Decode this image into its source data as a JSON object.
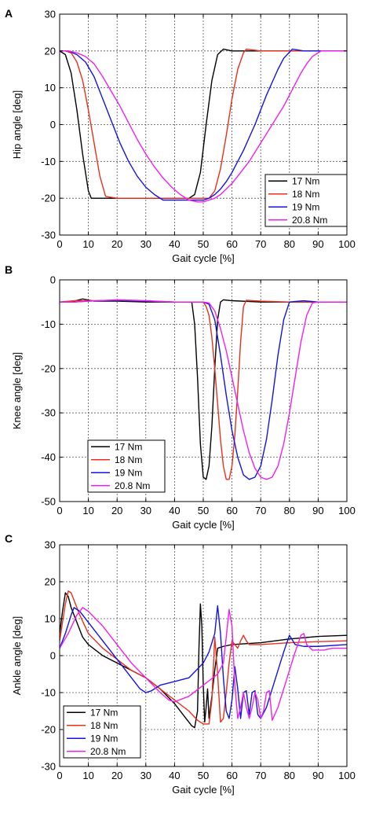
{
  "colors": {
    "17 Nm": "#000000",
    "18 Nm": "#e8301c",
    "19 Nm": "#1414e0",
    "20.8 Nm": "#f020f0"
  },
  "chart_data": [
    {
      "type": "line",
      "panel_label": "A",
      "xlabel": "Gait cycle [%]",
      "ylabel": "Hip angle [deg]",
      "xlim": [
        0,
        100
      ],
      "ylim": [
        -30,
        30
      ],
      "xticks": [
        0,
        10,
        20,
        30,
        40,
        50,
        60,
        70,
        80,
        90,
        100
      ],
      "yticks": [
        -30,
        -20,
        -10,
        0,
        10,
        20,
        30
      ],
      "grid": true,
      "legend_position": "bottom-right",
      "series": [
        {
          "name": "17 Nm",
          "x": [
            0,
            2,
            4,
            6,
            8,
            10,
            11,
            14,
            20,
            30,
            40,
            45,
            47,
            49,
            51,
            53,
            55,
            57,
            60,
            70,
            80,
            90,
            100
          ],
          "y": [
            20,
            19,
            14,
            4,
            -8,
            -18,
            -20,
            -20,
            -20,
            -20,
            -20,
            -20,
            -19,
            -13,
            0,
            12,
            19,
            20.5,
            20,
            20,
            20,
            20,
            20
          ]
        },
        {
          "name": "18 Nm",
          "x": [
            0,
            2,
            4,
            6,
            8,
            10,
            12,
            14,
            16,
            20,
            30,
            40,
            50,
            52,
            54,
            56,
            58,
            60,
            62,
            64,
            65,
            70,
            80,
            90,
            100
          ],
          "y": [
            20,
            20,
            19.5,
            17,
            12,
            4,
            -5,
            -14,
            -19.5,
            -20,
            -20,
            -20,
            -20,
            -20,
            -18,
            -12,
            -3,
            7,
            15,
            19.5,
            20.5,
            20,
            20,
            20,
            20
          ]
        },
        {
          "name": "19 Nm",
          "x": [
            0,
            3,
            6,
            9,
            12,
            15,
            18,
            21,
            24,
            27,
            30,
            33,
            36,
            40,
            45,
            50,
            52,
            54,
            56,
            58,
            60,
            62,
            64,
            66,
            68,
            70,
            72,
            74,
            76,
            78,
            81,
            85,
            90,
            100
          ],
          "y": [
            20,
            20,
            19,
            17,
            13,
            7,
            1,
            -5,
            -10,
            -14,
            -17,
            -19,
            -20.5,
            -20.5,
            -20.5,
            -20.5,
            -20,
            -19,
            -17.5,
            -15.5,
            -13,
            -10,
            -7,
            -3.5,
            0,
            4,
            8,
            11.5,
            15,
            18,
            20.5,
            20,
            20,
            20
          ]
        },
        {
          "name": "20.8 Nm",
          "x": [
            0,
            3,
            6,
            9,
            12,
            15,
            18,
            21,
            24,
            27,
            30,
            33,
            36,
            39,
            42,
            45,
            48,
            50,
            52,
            54,
            56,
            58,
            60,
            62,
            64,
            66,
            68,
            70,
            72,
            74,
            76,
            78,
            80,
            82,
            84,
            86,
            88,
            91,
            95,
            100
          ],
          "y": [
            20,
            20,
            19.5,
            18.5,
            16.5,
            13,
            9,
            5,
            0.5,
            -4,
            -8,
            -11.5,
            -14.5,
            -17,
            -19,
            -20.5,
            -21,
            -21,
            -20.5,
            -20,
            -19,
            -17.5,
            -16,
            -14,
            -12,
            -10,
            -7.5,
            -5,
            -2.5,
            0,
            2.5,
            5,
            8,
            11,
            14,
            16.5,
            18.5,
            20,
            20,
            20
          ]
        }
      ]
    },
    {
      "type": "line",
      "panel_label": "B",
      "xlabel": "Gait cycle [%]",
      "ylabel": "Knee angle [deg]",
      "xlim": [
        0,
        100
      ],
      "ylim": [
        -50,
        0
      ],
      "xticks": [
        0,
        10,
        20,
        30,
        40,
        50,
        60,
        70,
        80,
        90,
        100
      ],
      "yticks": [
        -50,
        -40,
        -30,
        -20,
        -10,
        0
      ],
      "grid": true,
      "legend_position": "bottom-left",
      "series": [
        {
          "name": "17 Nm",
          "x": [
            0,
            5,
            8,
            12,
            20,
            30,
            40,
            46,
            47,
            48,
            49,
            50,
            51,
            52,
            53,
            54,
            55,
            56,
            57,
            60,
            70,
            80,
            90,
            100
          ],
          "y": [
            -5,
            -4.8,
            -4.3,
            -4.8,
            -4.8,
            -5,
            -5,
            -5,
            -10,
            -22,
            -37,
            -44.5,
            -45,
            -42,
            -33,
            -20,
            -9,
            -5,
            -4.5,
            -4.7,
            -5,
            -5,
            -5,
            -5
          ]
        },
        {
          "name": "18 Nm",
          "x": [
            0,
            5,
            10,
            20,
            30,
            40,
            50,
            51,
            52,
            53,
            54,
            55,
            56,
            57,
            58,
            59,
            60,
            61,
            62,
            63,
            64,
            65,
            70,
            80,
            90,
            100
          ],
          "y": [
            -5,
            -4.7,
            -4.7,
            -4.6,
            -4.8,
            -5,
            -5,
            -6,
            -8,
            -13,
            -20,
            -28,
            -36,
            -42,
            -45,
            -45,
            -42,
            -35,
            -25,
            -14,
            -6,
            -4.6,
            -4.8,
            -5,
            -5,
            -5
          ]
        },
        {
          "name": "19 Nm",
          "x": [
            0,
            5,
            10,
            20,
            30,
            40,
            50,
            52,
            54,
            56,
            58,
            60,
            62,
            64,
            66,
            68,
            70,
            72,
            74,
            76,
            78,
            80,
            85,
            90,
            100
          ],
          "y": [
            -5,
            -5,
            -4.8,
            -4.6,
            -4.8,
            -5,
            -5,
            -5.5,
            -9,
            -17,
            -26,
            -34,
            -40,
            -44,
            -45,
            -44.5,
            -42,
            -36,
            -27,
            -17,
            -9,
            -5,
            -4.7,
            -5,
            -5
          ]
        },
        {
          "name": "20.8 Nm",
          "x": [
            0,
            5,
            10,
            20,
            30,
            40,
            50,
            52,
            54,
            56,
            58,
            60,
            62,
            64,
            66,
            68,
            70,
            72,
            74,
            76,
            78,
            80,
            82,
            84,
            86,
            88,
            90,
            100
          ],
          "y": [
            -5,
            -5,
            -4.8,
            -4.5,
            -4.7,
            -5,
            -5,
            -5.2,
            -7,
            -11,
            -16,
            -22,
            -28,
            -34,
            -39,
            -42.5,
            -44.5,
            -45,
            -44.5,
            -42,
            -37,
            -30,
            -22,
            -14,
            -8,
            -5.2,
            -5,
            -5
          ]
        }
      ]
    },
    {
      "type": "line",
      "panel_label": "C",
      "xlabel": "Gait cycle [%]",
      "ylabel": "Ankle angle [deg]",
      "xlim": [
        0,
        100
      ],
      "ylim": [
        -30,
        30
      ],
      "xticks": [
        0,
        10,
        20,
        30,
        40,
        50,
        60,
        70,
        80,
        90,
        100
      ],
      "yticks": [
        -30,
        -20,
        -10,
        0,
        10,
        20,
        30
      ],
      "grid": true,
      "legend_position": "bottom-left",
      "series": [
        {
          "name": "17 Nm",
          "x": [
            0,
            1,
            2,
            3,
            4,
            6,
            8,
            10,
            15,
            20,
            25,
            30,
            35,
            40,
            44,
            46,
            47,
            48,
            48.5,
            49,
            49.5,
            50,
            50.5,
            51,
            51.5,
            52,
            53,
            54,
            55,
            57,
            60,
            70,
            80,
            90,
            100
          ],
          "y": [
            6,
            12,
            17,
            16,
            13,
            9,
            5,
            3,
            0,
            -2,
            -4,
            -6,
            -9,
            -13,
            -17,
            -19,
            -19.5,
            -15,
            2,
            14,
            8,
            -8,
            -18,
            -14,
            -9,
            -17,
            -11,
            -4,
            2,
            2.5,
            3,
            3.5,
            4.5,
            5.2,
            5.5
          ]
        },
        {
          "name": "18 Nm",
          "x": [
            0,
            1,
            2,
            3,
            4,
            5,
            7,
            10,
            15,
            20,
            25,
            30,
            35,
            40,
            45,
            48,
            50,
            52,
            53,
            54,
            55,
            56,
            57,
            58,
            59,
            60,
            61,
            62,
            63,
            64,
            65,
            66,
            70,
            80,
            90,
            100
          ],
          "y": [
            4,
            9,
            14,
            17.5,
            17,
            15,
            11,
            6,
            2,
            -1,
            -4,
            -6,
            -9,
            -12,
            -15,
            -17.5,
            -18.5,
            -18.5,
            -12,
            5,
            -5,
            -18,
            -17,
            -10,
            -2,
            4,
            3,
            2,
            4,
            5.5,
            4,
            3,
            3,
            3.5,
            3.8,
            4
          ]
        },
        {
          "name": "19 Nm",
          "x": [
            0,
            2,
            4,
            5,
            7,
            10,
            15,
            20,
            25,
            28,
            30,
            32,
            35,
            40,
            45,
            50,
            52,
            54,
            55,
            56,
            57,
            58,
            59,
            60,
            61,
            62,
            63,
            64,
            65,
            66,
            67,
            68,
            69,
            70,
            72,
            74,
            76,
            78,
            80,
            82,
            85,
            90,
            100
          ],
          "y": [
            2,
            6,
            11,
            13,
            12,
            9,
            4,
            -1,
            -6,
            -9,
            -10,
            -9.5,
            -8,
            -7,
            -6,
            -2,
            1,
            6,
            13.5,
            6,
            -6,
            -15,
            -17,
            -12,
            -3,
            -9,
            -17,
            -10,
            -9.5,
            -16,
            -10,
            -9.5,
            -16,
            -17,
            -14,
            -9,
            -4,
            1,
            5.5,
            3,
            2.5,
            2.5,
            3
          ]
        },
        {
          "name": "20.8 Nm",
          "x": [
            0,
            3,
            6,
            8,
            10,
            15,
            20,
            25,
            30,
            35,
            38,
            40,
            45,
            50,
            55,
            57,
            58,
            59,
            60,
            61,
            62,
            63,
            64,
            65,
            66,
            67,
            68,
            69,
            70,
            71,
            72,
            73,
            74,
            76,
            78,
            80,
            82,
            84,
            85,
            86,
            88,
            90,
            92,
            95,
            100
          ],
          "y": [
            2,
            6,
            11,
            13,
            12,
            8,
            3,
            -2,
            -6,
            -10,
            -12,
            -12.5,
            -11,
            -8,
            -5,
            -2,
            5,
            12.5,
            8,
            -8,
            -17,
            -14,
            -10,
            -14,
            -17,
            -14,
            -10,
            -12,
            -17,
            -15,
            -10,
            -9.5,
            -17.5,
            -14,
            -9,
            -4,
            1,
            5.5,
            6,
            3,
            1.5,
            1.5,
            1.5,
            2,
            2
          ]
        }
      ]
    }
  ]
}
